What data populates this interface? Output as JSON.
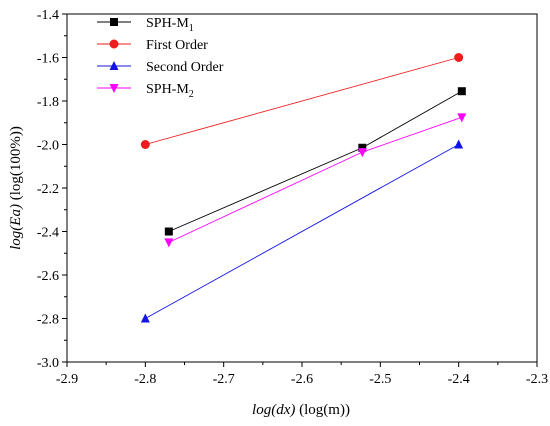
{
  "chart_data": {
    "type": "line",
    "xlabel_italic": "log(dx)",
    "xlabel_rest": " (log(m))",
    "ylabel_italic": "log(Ea)",
    "ylabel_rest": " (log(100%))",
    "xlim": [
      -2.9,
      -2.3
    ],
    "ylim": [
      -3.0,
      -1.4
    ],
    "xticks": [
      -2.9,
      -2.8,
      -2.7,
      -2.6,
      -2.5,
      -2.4,
      -2.3
    ],
    "xtick_labels": [
      "-2.9",
      "-2.8",
      "-2.7",
      "-2.6",
      "-2.5",
      "-2.4",
      "-2.3"
    ],
    "yticks": [
      -3.0,
      -2.8,
      -2.6,
      -2.4,
      -2.2,
      -2.0,
      -1.8,
      -1.6,
      -1.4
    ],
    "ytick_labels": [
      "-3.0",
      "-2.8",
      "-2.6",
      "-2.4",
      "-2.2",
      "-2.0",
      "-1.8",
      "-1.6",
      "-1.4"
    ],
    "grid": false,
    "legend_position": "top-left",
    "series": [
      {
        "name": "SPH-M",
        "name_sub": "1",
        "color": "#000000",
        "marker": "square",
        "x": [
          -2.77,
          -2.523,
          -2.396
        ],
        "y": [
          -2.4,
          -2.015,
          -1.755
        ]
      },
      {
        "name": "First Order",
        "name_sub": "",
        "color": "#ee1c1c",
        "marker": "circle",
        "x": [
          -2.8,
          -2.4
        ],
        "y": [
          -2.0,
          -1.6
        ]
      },
      {
        "name": "Second Order",
        "name_sub": "",
        "color": "#1414e6",
        "marker": "triangle-up",
        "x": [
          -2.8,
          -2.4
        ],
        "y": [
          -2.8,
          -2.0
        ]
      },
      {
        "name": "SPH-M",
        "name_sub": "2",
        "color": "#ff00ff",
        "marker": "triangle-down",
        "x": [
          -2.77,
          -2.523,
          -2.396
        ],
        "y": [
          -2.45,
          -2.035,
          -1.875
        ]
      }
    ]
  }
}
